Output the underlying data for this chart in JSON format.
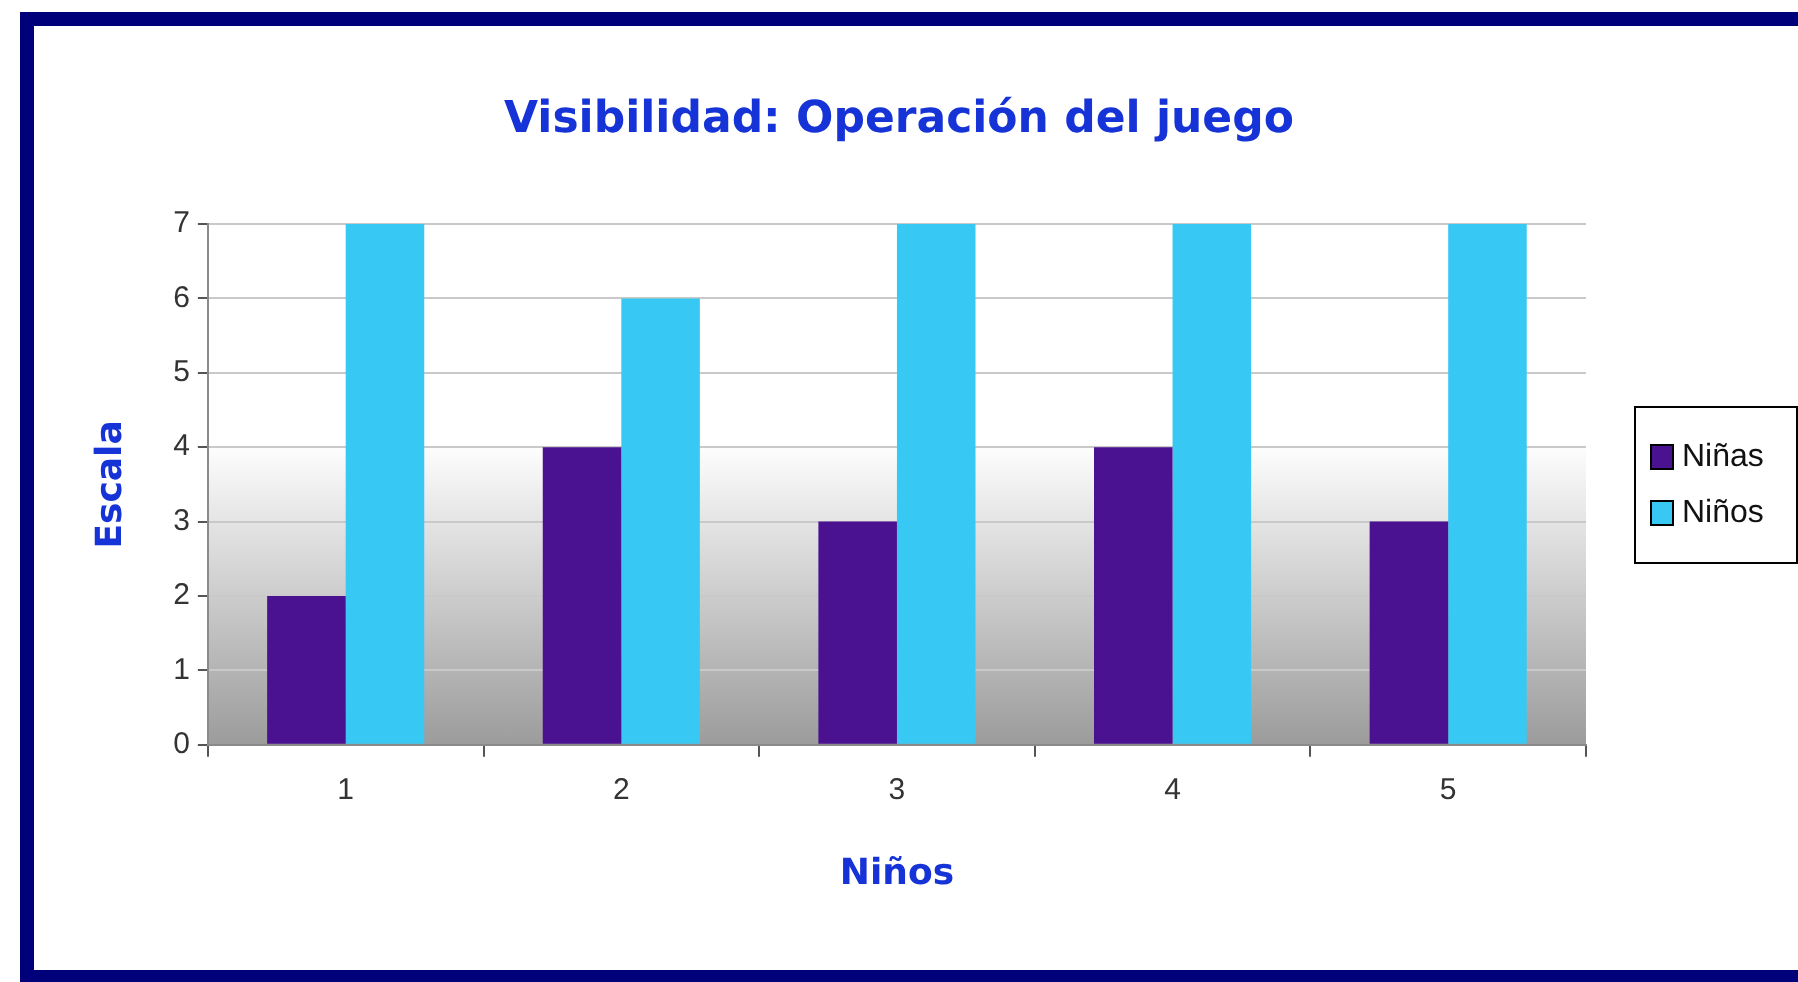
{
  "chart_data": {
    "type": "bar",
    "title": "Visibilidad: Operación del juego",
    "xlabel": "Niños",
    "ylabel": "Escala",
    "categories": [
      "1",
      "2",
      "3",
      "4",
      "5"
    ],
    "series": [
      {
        "name": "Niñas",
        "color": "#4a1190",
        "values": [
          2,
          4,
          3,
          4,
          3
        ]
      },
      {
        "name": "Niños",
        "color": "#38c8f4",
        "values": [
          7,
          6,
          7,
          7,
          7
        ]
      }
    ],
    "ylim": [
      0,
      7
    ],
    "yticks": [
      0,
      1,
      2,
      3,
      4,
      5,
      6,
      7
    ],
    "grid": "y",
    "legend": "right"
  }
}
